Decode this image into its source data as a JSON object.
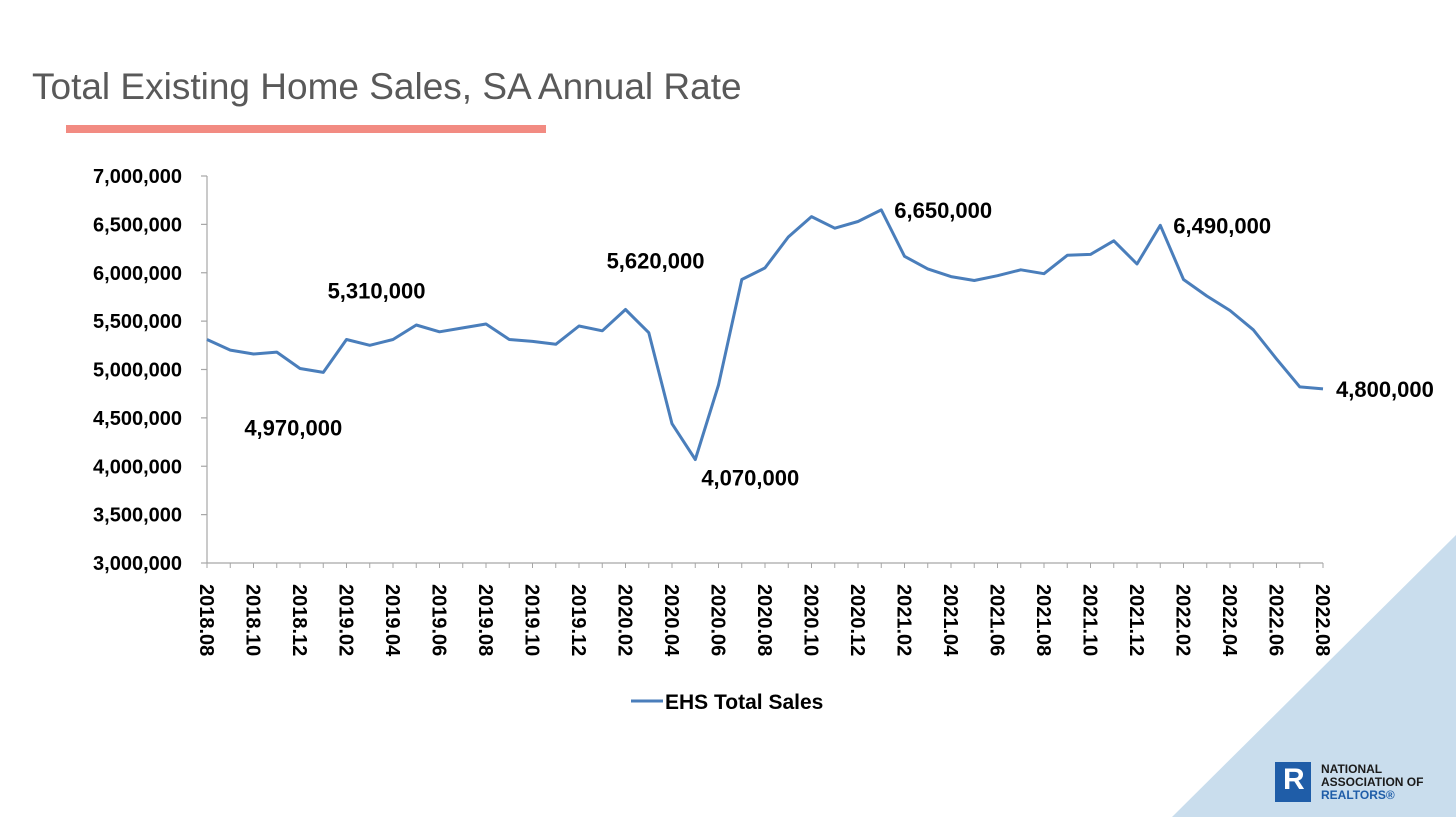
{
  "slide": {
    "title": "Total Existing Home Sales, SA Annual Rate",
    "accent_color": "#f28b82",
    "corner_color": "#c9dded"
  },
  "logo": {
    "line1": "NATIONAL",
    "line2": "ASSOCIATION OF",
    "line3": "REALTORS®",
    "mark": "R",
    "color": "#1f5da8"
  },
  "chart_data": {
    "type": "line",
    "title": "Total Existing Home Sales, SA Annual Rate",
    "xlabel": "",
    "ylabel": "",
    "ylim": [
      3000000,
      7000000
    ],
    "yticks": [
      3000000,
      3500000,
      4000000,
      4500000,
      5000000,
      5500000,
      6000000,
      6500000,
      7000000
    ],
    "ytick_labels": [
      "3,000,000",
      "3,500,000",
      "4,000,000",
      "4,500,000",
      "5,000,000",
      "5,500,000",
      "6,000,000",
      "6,500,000",
      "7,000,000"
    ],
    "x": [
      "2018.08",
      "2018.09",
      "2018.10",
      "2018.11",
      "2018.12",
      "2019.01",
      "2019.02",
      "2019.03",
      "2019.04",
      "2019.05",
      "2019.06",
      "2019.07",
      "2019.08",
      "2019.09",
      "2019.10",
      "2019.11",
      "2019.12",
      "2020.01",
      "2020.02",
      "2020.03",
      "2020.04",
      "2020.05",
      "2020.06",
      "2020.07",
      "2020.08",
      "2020.09",
      "2020.10",
      "2020.11",
      "2020.12",
      "2021.01",
      "2021.02",
      "2021.03",
      "2021.04",
      "2021.05",
      "2021.06",
      "2021.07",
      "2021.08",
      "2021.09",
      "2021.10",
      "2021.11",
      "2021.12",
      "2022.01",
      "2022.02",
      "2022.03",
      "2022.04",
      "2022.05",
      "2022.06",
      "2022.07",
      "2022.08"
    ],
    "xtick_labels": [
      "2018.08",
      "2018.10",
      "2018.12",
      "2019.02",
      "2019.04",
      "2019.06",
      "2019.08",
      "2019.10",
      "2019.12",
      "2020.02",
      "2020.04",
      "2020.06",
      "2020.08",
      "2020.10",
      "2020.12",
      "2021.02",
      "2021.04",
      "2021.06",
      "2021.08",
      "2021.10",
      "2021.12",
      "2022.02",
      "2022.04",
      "2022.06",
      "2022.08"
    ],
    "series": [
      {
        "name": "EHS Total Sales",
        "color": "#4a7ebb",
        "values": [
          5310000,
          5200000,
          5160000,
          5180000,
          5010000,
          4970000,
          5310000,
          5250000,
          5310000,
          5460000,
          5390000,
          5430000,
          5470000,
          5310000,
          5290000,
          5260000,
          5450000,
          5400000,
          5620000,
          5380000,
          4440000,
          4070000,
          4840000,
          5930000,
          6050000,
          6370000,
          6580000,
          6460000,
          6530000,
          6650000,
          6170000,
          6040000,
          5960000,
          5920000,
          5970000,
          6030000,
          5990000,
          6180000,
          6190000,
          6330000,
          6090000,
          6490000,
          5930000,
          5760000,
          5610000,
          5410000,
          5110000,
          4820000,
          4800000
        ]
      }
    ],
    "data_labels": [
      {
        "index": 5,
        "text": "4,970,000",
        "pos": "below-left"
      },
      {
        "index": 6,
        "text": "5,310,000",
        "pos": "above-right"
      },
      {
        "index": 18,
        "text": "5,620,000",
        "pos": "above-right"
      },
      {
        "index": 21,
        "text": "4,070,000",
        "pos": "below-right"
      },
      {
        "index": 29,
        "text": "6,650,000",
        "pos": "right"
      },
      {
        "index": 41,
        "text": "6,490,000",
        "pos": "right"
      },
      {
        "index": 48,
        "text": "4,800,000",
        "pos": "right"
      }
    ],
    "legend": {
      "position": "bottom",
      "entries": [
        "EHS Total Sales"
      ]
    },
    "grid": false
  }
}
